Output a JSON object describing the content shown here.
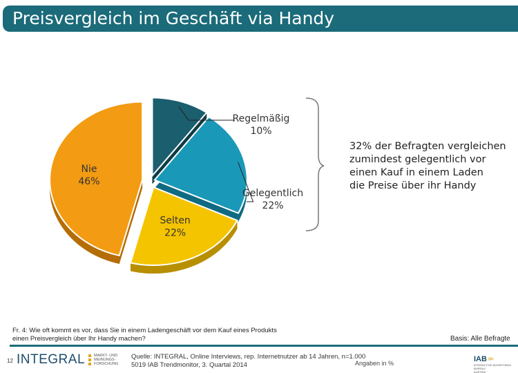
{
  "page": {
    "title": "Preisvergleich im Geschäft via Handy",
    "summary": "32% der Befragten vergleichen\nzumindest gelegentlich vor\neinen Kauf in einem Laden\ndie Preise über ihr Handy",
    "question": "Fr. 4: Wie oft kommt es vor, dass Sie in einem Ladengeschäft vor dem Kauf eines Produkts\neinen Preisvergleich über Ihr Handy machen?",
    "basis": "Basis: Alle Befragte",
    "page_number": "12",
    "source": "Quelle: INTEGRAL, Online Interviews, rep. Internetnutzer ab 14 Jahren, n=1.000\n5019 IAB Trendmonitor, 3. Quartal 2014",
    "note": "Angaben in %",
    "logo_integral": "INTEGRAL",
    "logo_integral_sub": "MARKT- UND\nMEINUNGS-\nFORSCHUNG",
    "logo_iab": "IAB",
    "logo_iab_arrows": "»»",
    "logo_iab_sub": "INTERACTIVE ADVERTISING BUREAU\nAUSTRIA"
  },
  "colors": {
    "title_bar": "#1b6b7a",
    "footer_rule": "#1b6b7a",
    "slices": [
      "#1b5e6e",
      "#1a98b8",
      "#f5c400",
      "#f39b12"
    ],
    "slice_sides": [
      "#0f3b46",
      "#106a82",
      "#b88f00",
      "#b56d08"
    ]
  },
  "chart_data": {
    "type": "pie",
    "title": "Preisvergleich im Geschäft via Handy",
    "unit": "%",
    "categories": [
      "Regelmäßig",
      "Gelegentlich",
      "Selten",
      "Nie"
    ],
    "values": [
      10,
      22,
      22,
      46
    ],
    "value_labels": [
      "10%",
      "22%",
      "22%",
      "46%"
    ],
    "start_angle_deg": 0,
    "direction": "clockwise",
    "labels_outside": [
      "Regelmäßig",
      "Gelegentlich"
    ],
    "labels_inside": [
      "Selten",
      "Nie"
    ]
  }
}
